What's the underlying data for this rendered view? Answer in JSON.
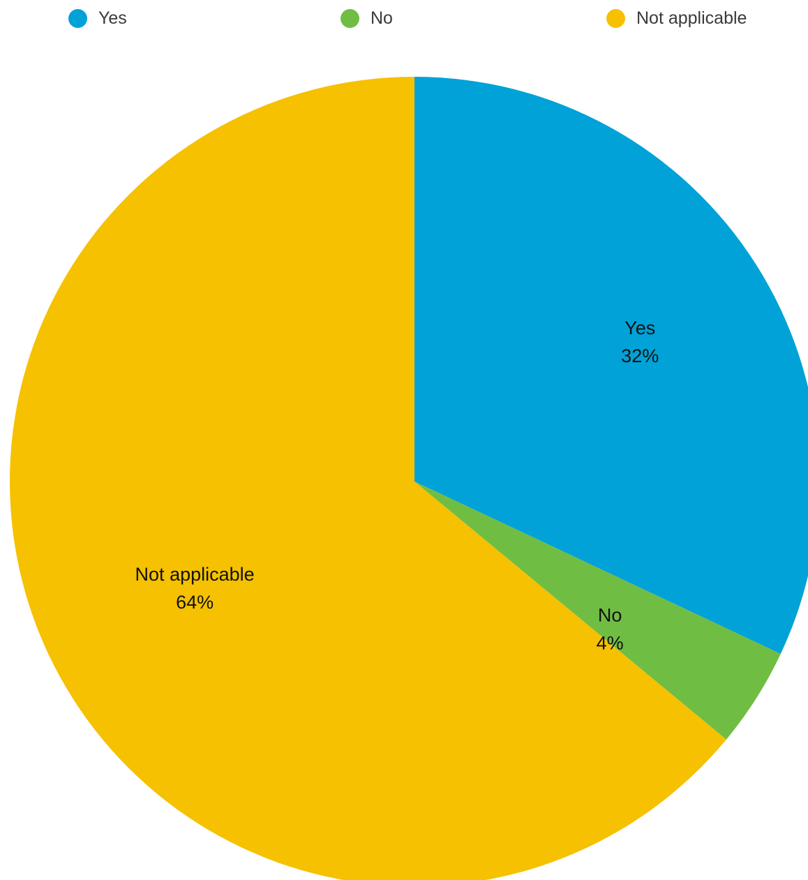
{
  "chart_data": {
    "type": "pie",
    "title": "",
    "legend": {
      "position": "top",
      "items": [
        {
          "label": "Yes",
          "color": "#00A2D7"
        },
        {
          "label": "No",
          "color": "#70BD44"
        },
        {
          "label": "Not applicable",
          "color": "#F5C100"
        }
      ]
    },
    "slices": [
      {
        "label": "Yes",
        "value": 32,
        "value_label": "32%",
        "color": "#00A2D7"
      },
      {
        "label": "No",
        "value": 4,
        "value_label": "4%",
        "color": "#70BD44"
      },
      {
        "label": "Not applicable",
        "value": 64,
        "value_label": "64%",
        "color": "#F5C100"
      }
    ],
    "start_angle_deg": 0,
    "direction": "clockwise"
  }
}
